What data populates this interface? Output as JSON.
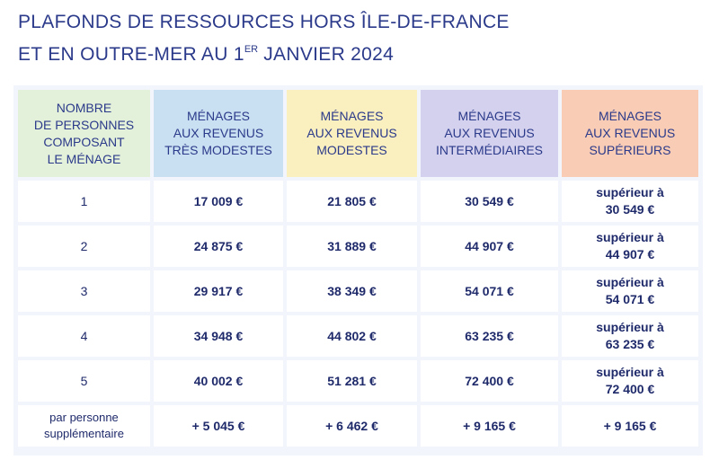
{
  "title": {
    "line1": "PLAFONDS DE RESSOURCES HORS ÎLE-DE-FRANCE",
    "line2_prefix": "ET EN OUTRE-MER AU 1",
    "line2_sup": "ER",
    "line2_suffix": " JANVIER 2024"
  },
  "table": {
    "headers": [
      "NOMBRE\nDE PERSONNES\nCOMPOSANT\nLE MÉNAGE",
      "MÉNAGES\nAUX REVENUS\nTRÈS MODESTES",
      "MÉNAGES\nAUX REVENUS\nMODESTES",
      "MÉNAGES\nAUX REVENUS\nINTERMÉDIAIRES",
      "MÉNAGES\nAUX REVENUS\nSUPÉRIEURS"
    ],
    "header_colors": [
      "#e3f0da",
      "#c9e0f2",
      "#f9efbf",
      "#d4d1ee",
      "#f8ccb5"
    ],
    "rows": [
      [
        "1",
        "17 009 €",
        "21 805 €",
        "30 549 €",
        "supérieur à\n30 549 €"
      ],
      [
        "2",
        "24 875 €",
        "31 889 €",
        "44 907 €",
        "supérieur à\n44 907 €"
      ],
      [
        "3",
        "29 917 €",
        "38 349 €",
        "54 071 €",
        "supérieur à\n54 071 €"
      ],
      [
        "4",
        "34 948 €",
        "44 802 €",
        "63 235 €",
        "supérieur à\n63 235 €"
      ],
      [
        "5",
        "40 002 €",
        "51 281 €",
        "72 400 €",
        "supérieur à\n72 400 €"
      ],
      [
        "par personne\nsupplémentaire",
        "+ 5 045 €",
        "+ 6 462 €",
        "+ 9 165 €",
        "+ 9 165 €"
      ]
    ]
  }
}
